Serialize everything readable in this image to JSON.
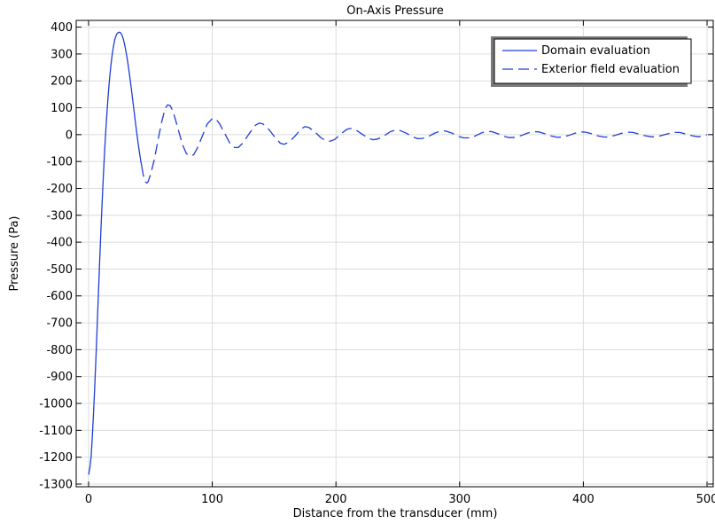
{
  "chart_data": {
    "type": "line",
    "title": "On-Axis Pressure",
    "xlabel": "Distance from the transducer (mm)",
    "ylabel": "Pressure (Pa)",
    "xlim": [
      -10,
      505
    ],
    "ylim": [
      -1310,
      425
    ],
    "x_ticks": [
      0,
      100,
      200,
      300,
      400,
      500
    ],
    "y_ticks": [
      400,
      300,
      200,
      100,
      0,
      -100,
      -200,
      -300,
      -400,
      -500,
      -600,
      -700,
      -800,
      -900,
      -1000,
      -1100,
      -1200,
      -1300
    ],
    "grid": true,
    "legend_position": "top-right",
    "series": [
      {
        "name": "Domain evaluation",
        "style": "solid",
        "color": "#1f3ed6",
        "points": [
          [
            0,
            -1265
          ],
          [
            1,
            -1240
          ],
          [
            2,
            -1200
          ],
          [
            3,
            -1130
          ],
          [
            4,
            -1040
          ],
          [
            5,
            -940
          ],
          [
            6,
            -830
          ],
          [
            7,
            -710
          ],
          [
            8,
            -590
          ],
          [
            9,
            -470
          ],
          [
            10,
            -355
          ],
          [
            11,
            -250
          ],
          [
            12,
            -150
          ],
          [
            13,
            -60
          ],
          [
            14,
            20
          ],
          [
            15,
            90
          ],
          [
            16,
            155
          ],
          [
            17,
            210
          ],
          [
            18,
            255
          ],
          [
            19,
            295
          ],
          [
            20,
            325
          ],
          [
            21,
            350
          ],
          [
            22,
            366
          ],
          [
            23,
            376
          ],
          [
            24,
            380
          ],
          [
            25,
            381
          ],
          [
            26,
            378
          ],
          [
            27,
            370
          ],
          [
            28,
            357
          ],
          [
            29,
            339
          ],
          [
            30,
            316
          ],
          [
            31,
            290
          ],
          [
            32,
            260
          ],
          [
            33,
            227
          ],
          [
            34,
            192
          ],
          [
            35,
            156
          ],
          [
            36,
            118
          ],
          [
            37,
            80
          ],
          [
            38,
            42
          ],
          [
            39,
            5
          ],
          [
            40,
            -30
          ],
          [
            41,
            -62
          ],
          [
            42,
            -92
          ],
          [
            43,
            -118
          ]
        ]
      },
      {
        "name": "Exterior field evaluation",
        "style": "dashed",
        "color": "#1f3ed6",
        "points": [
          [
            43,
            -118
          ],
          [
            44,
            -145
          ],
          [
            45,
            -165
          ],
          [
            46,
            -176
          ],
          [
            47,
            -180
          ],
          [
            48,
            -176
          ],
          [
            50,
            -150
          ],
          [
            53,
            -95
          ],
          [
            56,
            -25
          ],
          [
            59,
            45
          ],
          [
            62,
            98
          ],
          [
            64,
            111
          ],
          [
            66,
            108
          ],
          [
            68,
            90
          ],
          [
            70,
            60
          ],
          [
            73,
            10
          ],
          [
            76,
            -38
          ],
          [
            79,
            -70
          ],
          [
            82,
            -80
          ],
          [
            85,
            -75
          ],
          [
            88,
            -50
          ],
          [
            92,
            -5
          ],
          [
            96,
            40
          ],
          [
            100,
            60
          ],
          [
            103,
            58
          ],
          [
            106,
            40
          ],
          [
            110,
            5
          ],
          [
            114,
            -30
          ],
          [
            118,
            -48
          ],
          [
            121,
            -48
          ],
          [
            125,
            -30
          ],
          [
            130,
            5
          ],
          [
            135,
            35
          ],
          [
            138,
            43
          ],
          [
            141,
            40
          ],
          [
            146,
            18
          ],
          [
            151,
            -12
          ],
          [
            155,
            -32
          ],
          [
            158,
            -36
          ],
          [
            162,
            -28
          ],
          [
            167,
            -5
          ],
          [
            172,
            22
          ],
          [
            175,
            30
          ],
          [
            178,
            27
          ],
          [
            183,
            10
          ],
          [
            188,
            -12
          ],
          [
            192,
            -23
          ],
          [
            195,
            -25
          ],
          [
            199,
            -18
          ],
          [
            204,
            3
          ],
          [
            209,
            20
          ],
          [
            212,
            23
          ],
          [
            216,
            18
          ],
          [
            221,
            2
          ],
          [
            226,
            -13
          ],
          [
            230,
            -19
          ],
          [
            234,
            -16
          ],
          [
            239,
            -4
          ],
          [
            244,
            11
          ],
          [
            248,
            17
          ],
          [
            252,
            15
          ],
          [
            257,
            5
          ],
          [
            262,
            -8
          ],
          [
            266,
            -15
          ],
          [
            270,
            -14
          ],
          [
            275,
            -6
          ],
          [
            280,
            6
          ],
          [
            285,
            14
          ],
          [
            289,
            13
          ],
          [
            294,
            5
          ],
          [
            299,
            -6
          ],
          [
            303,
            -12
          ],
          [
            308,
            -12
          ],
          [
            313,
            -4
          ],
          [
            318,
            7
          ],
          [
            322,
            12
          ],
          [
            326,
            11
          ],
          [
            331,
            3
          ],
          [
            336,
            -6
          ],
          [
            340,
            -11
          ],
          [
            345,
            -10
          ],
          [
            350,
            -3
          ],
          [
            355,
            6
          ],
          [
            360,
            11
          ],
          [
            364,
            10
          ],
          [
            369,
            3
          ],
          [
            374,
            -5
          ],
          [
            379,
            -10
          ],
          [
            383,
            -9
          ],
          [
            388,
            -3
          ],
          [
            393,
            5
          ],
          [
            398,
            10
          ],
          [
            402,
            9
          ],
          [
            407,
            3
          ],
          [
            412,
            -5
          ],
          [
            417,
            -9
          ],
          [
            421,
            -8
          ],
          [
            426,
            -2
          ],
          [
            431,
            5
          ],
          [
            436,
            9
          ],
          [
            440,
            8
          ],
          [
            445,
            2
          ],
          [
            450,
            -4
          ],
          [
            455,
            -8
          ],
          [
            459,
            -8
          ],
          [
            464,
            -2
          ],
          [
            469,
            4
          ],
          [
            474,
            8
          ],
          [
            478,
            8
          ],
          [
            483,
            2
          ],
          [
            488,
            -4
          ],
          [
            493,
            -8
          ],
          [
            497,
            -5
          ],
          [
            500,
            0
          ]
        ]
      }
    ]
  }
}
